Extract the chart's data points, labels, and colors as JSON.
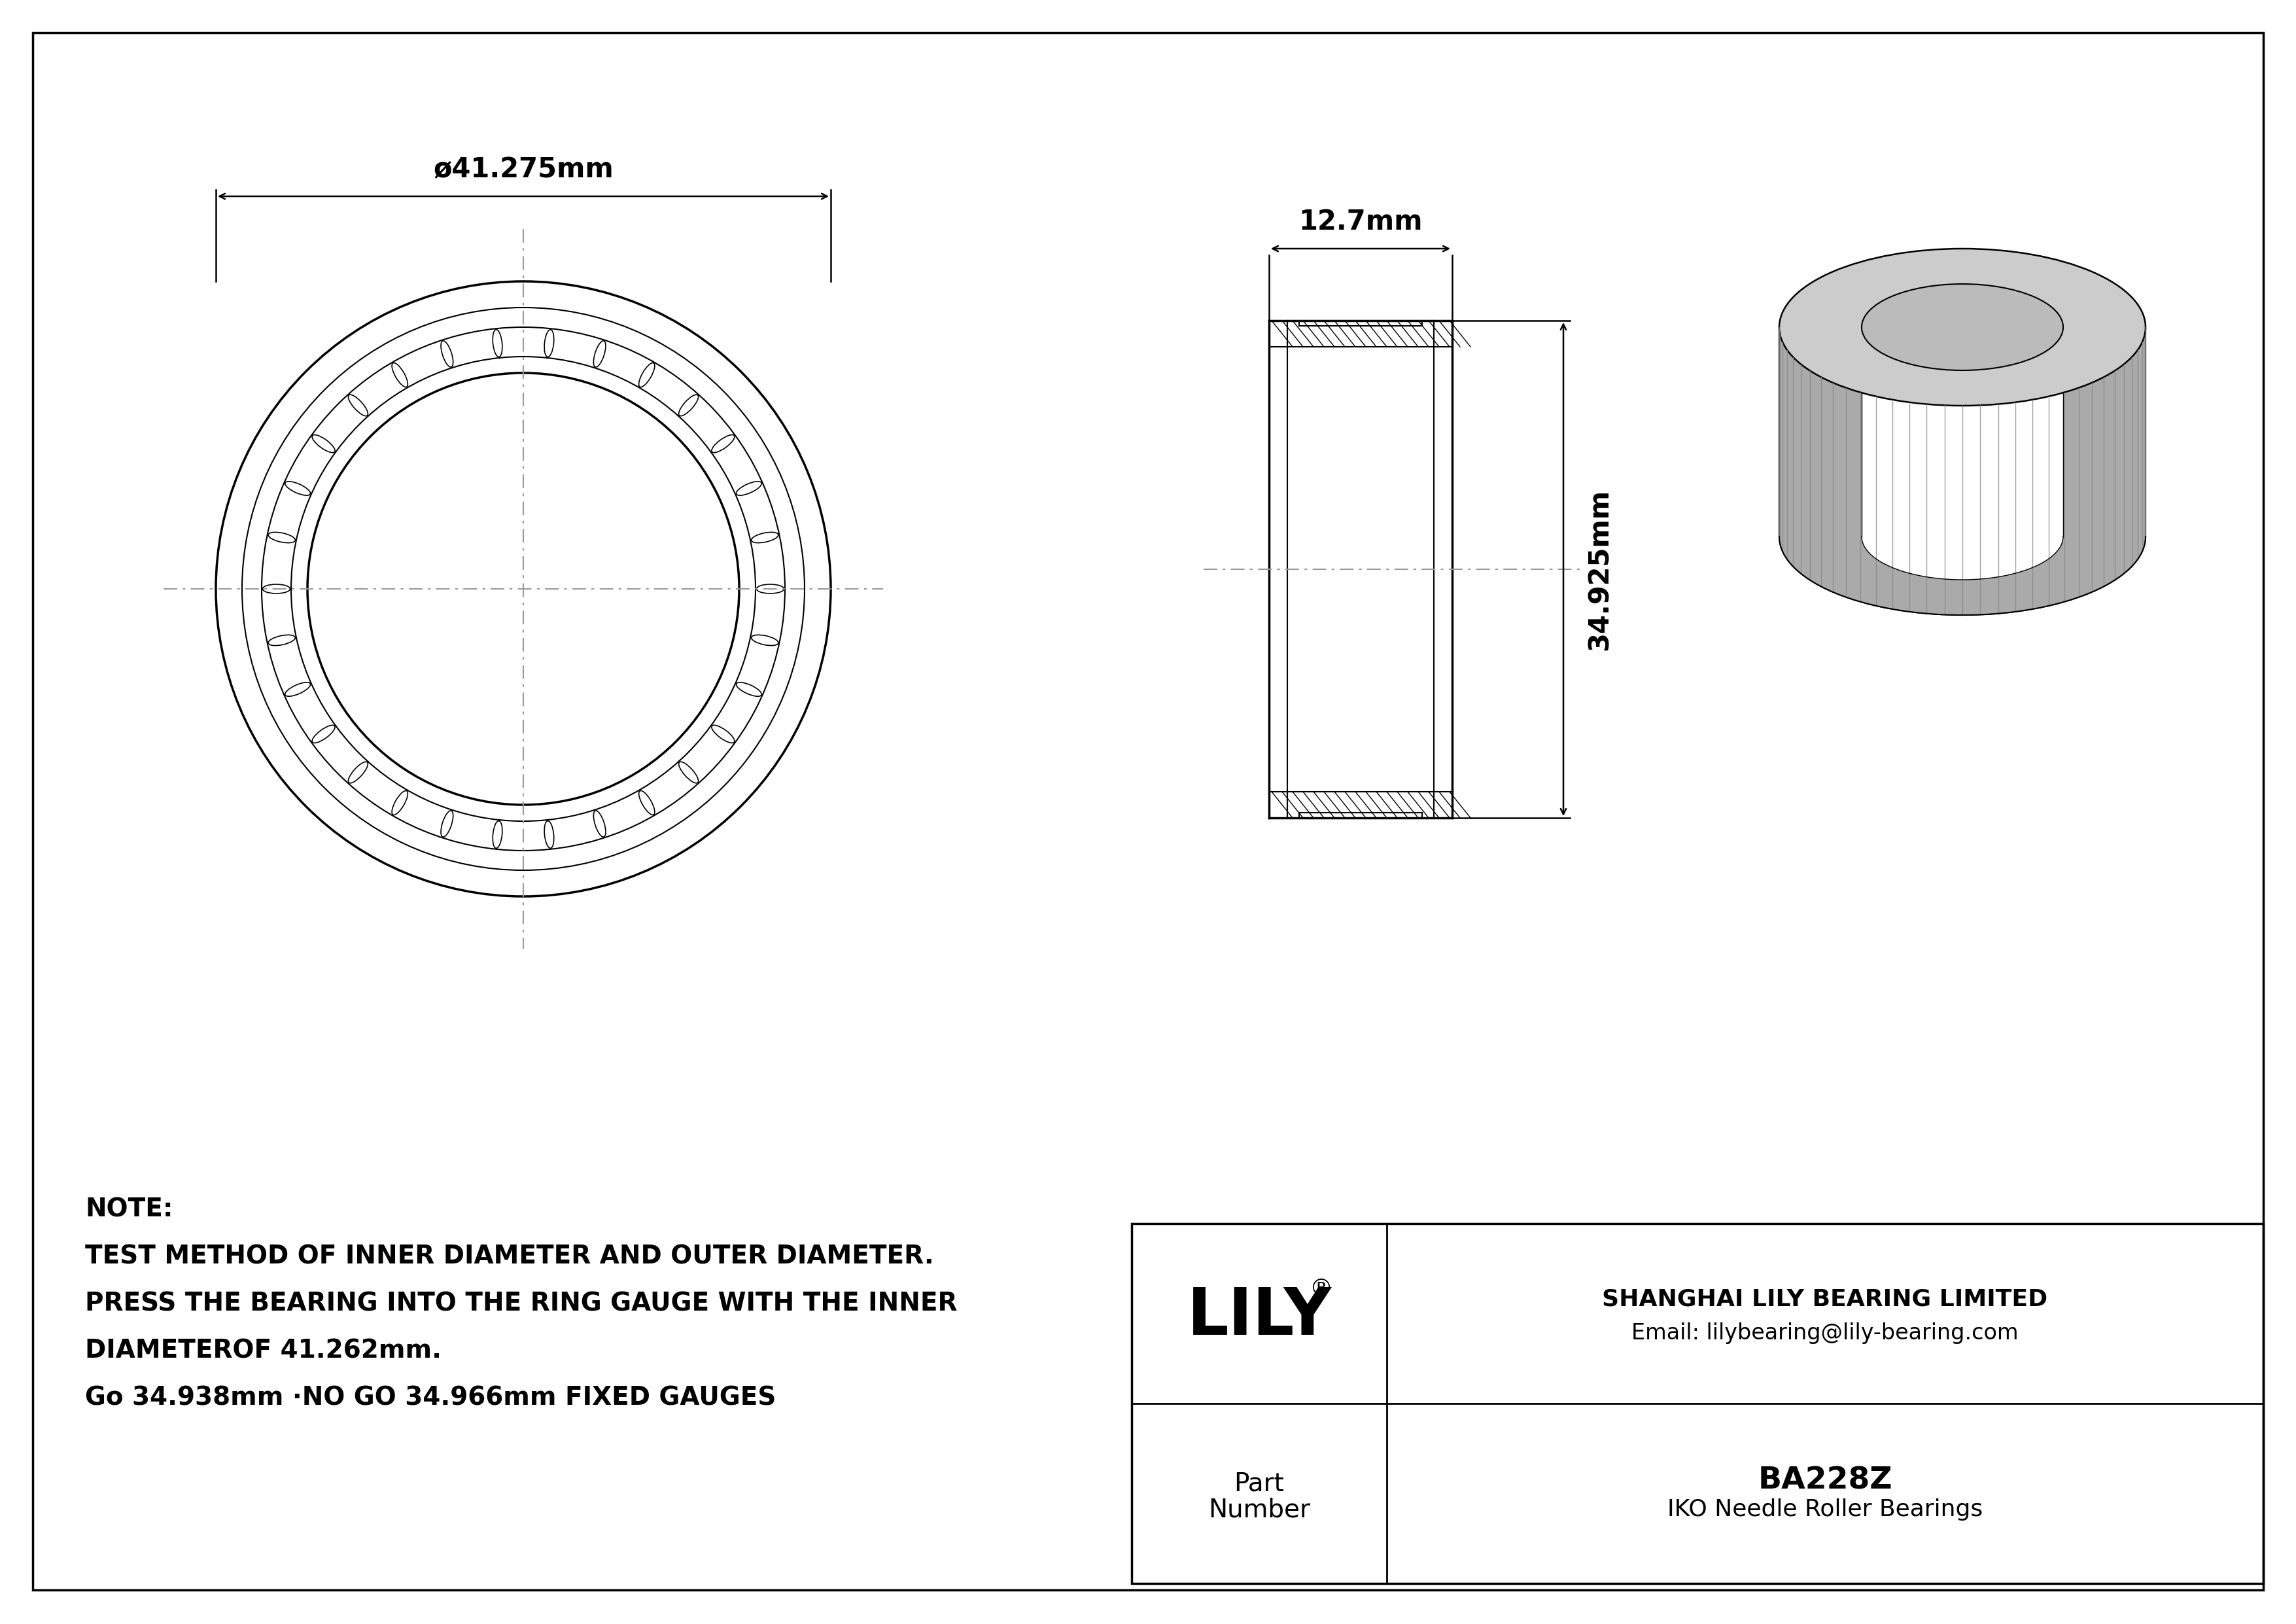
{
  "bg_color": "#ffffff",
  "line_color": "#000000",
  "gray3d": "#aaaaaa",
  "gray3d_dark": "#888888",
  "gray3d_light": "#cccccc",
  "gray3d_inner": "#bbbbbb",
  "center_line_color": "#999999",
  "outer_diameter_label": "ø41.275mm",
  "width_label": "12.7mm",
  "height_label": "34.925mm",
  "note_line1": "NOTE:",
  "note_line2": "TEST METHOD OF INNER DIAMETER AND OUTER DIAMETER.",
  "note_line3": "PRESS THE BEARING INTO THE RING GAUGE WITH THE INNER",
  "note_line4": "DIAMETEROF 41.262mm.",
  "note_line5": "Go 34.938mm ·NO GO 34.966mm FIXED GAUGES",
  "company_name": "SHANGHAI LILY BEARING LIMITED",
  "company_email": "Email: lilybearing@lily-bearing.com",
  "part_number": "BA228Z",
  "bearing_type": "IKO Needle Roller Bearings",
  "part_label_1": "Part",
  "part_label_2": "Number",
  "logo_text": "LILY",
  "logo_reg": "®"
}
